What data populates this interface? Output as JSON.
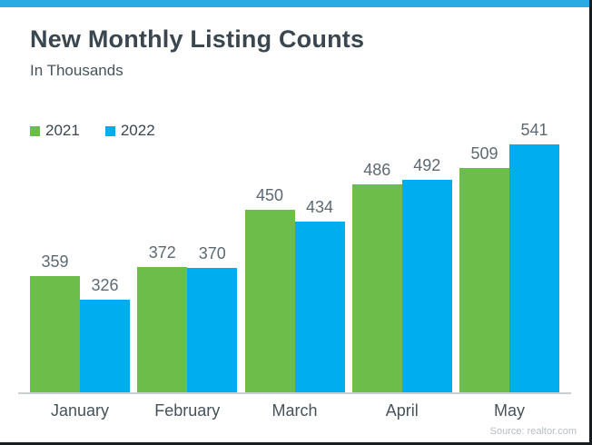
{
  "card": {
    "accent_color": "#29ABE2"
  },
  "chart_data": {
    "type": "bar",
    "title": "New Monthly Listing Counts",
    "subtitle": "In Thousands",
    "categories": [
      "January",
      "February",
      "March",
      "April",
      "May"
    ],
    "series": [
      {
        "name": "2021",
        "color": "#6CBE4B",
        "values": [
          359,
          372,
          450,
          486,
          509
        ]
      },
      {
        "name": "2022",
        "color": "#00ADEF",
        "values": [
          326,
          370,
          434,
          492,
          541
        ]
      }
    ],
    "ylim": [
      198,
      575
    ],
    "grid": false,
    "legend_position": "top-left",
    "value_labels": true,
    "source": "Source: realtor.com"
  }
}
